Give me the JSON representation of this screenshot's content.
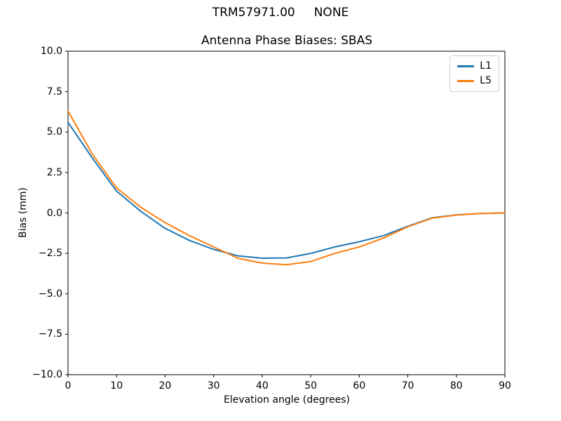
{
  "chart_data": {
    "type": "line",
    "suptitle": "TRM57971.00     NONE",
    "title": "Antenna Phase Biases: SBAS",
    "xlabel": "Elevation angle (degrees)",
    "ylabel": "Bias (mm)",
    "xlim": [
      0,
      90
    ],
    "ylim": [
      -10,
      10
    ],
    "grid": false,
    "legend_position": "upper right",
    "legend_border_color": "#cccccc",
    "axis_color": "#000000",
    "xtick_values": [
      0,
      10,
      20,
      30,
      40,
      50,
      60,
      70,
      80,
      90
    ],
    "xtick_labels": [
      "0",
      "10",
      "20",
      "30",
      "40",
      "50",
      "60",
      "70",
      "80",
      "90"
    ],
    "ytick_values": [
      -10,
      -7.5,
      -5,
      -2.5,
      0,
      2.5,
      5,
      7.5,
      10
    ],
    "ytick_labels": [
      "−10.0",
      "−7.5",
      "−5.0",
      "−2.5",
      "0.0",
      "2.5",
      "5.0",
      "7.5",
      "10.0"
    ],
    "x": [
      0,
      5,
      10,
      15,
      20,
      25,
      30,
      35,
      40,
      45,
      50,
      55,
      60,
      65,
      70,
      75,
      80,
      85,
      90
    ],
    "series": [
      {
        "name": "L1",
        "color": "#1f77b4",
        "values": [
          5.6,
          3.4,
          1.35,
          0.1,
          -0.95,
          -1.7,
          -2.25,
          -2.65,
          -2.8,
          -2.78,
          -2.5,
          -2.1,
          -1.78,
          -1.4,
          -0.82,
          -0.3,
          -0.12,
          -0.03,
          0.0
        ]
      },
      {
        "name": "L5",
        "color": "#ff7f0e",
        "values": [
          6.3,
          3.65,
          1.55,
          0.35,
          -0.6,
          -1.4,
          -2.1,
          -2.8,
          -3.1,
          -3.2,
          -3.0,
          -2.5,
          -2.1,
          -1.55,
          -0.85,
          -0.32,
          -0.13,
          -0.03,
          0.0
        ]
      }
    ]
  }
}
